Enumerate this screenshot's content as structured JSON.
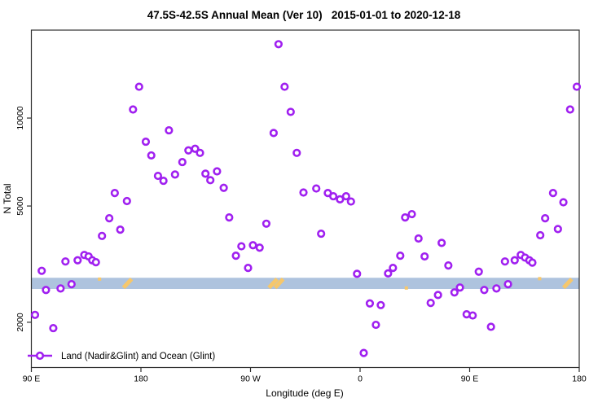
{
  "title": "47.5S-42.5S Annual Mean (Ver 10)   2015-01-01 to 2020-12-18",
  "legend": {
    "label": "Land (Nadir&Glint) and Ocean (Glint)"
  },
  "colors": {
    "points": "#A020F0",
    "band": "#AEC3DE",
    "band_marks": "#F6C76C",
    "axis": "#2e2e2e"
  },
  "x_axis": {
    "label": "Longitude (deg E)",
    "ticks": [
      {
        "lon": 90,
        "label": "90 E"
      },
      {
        "lon": 180,
        "label": "180"
      },
      {
        "lon": 270,
        "label": "90 W"
      },
      {
        "lon": 360,
        "label": "0"
      },
      {
        "lon": 450,
        "label": "90 E"
      },
      {
        "lon": 540,
        "label": "180"
      }
    ]
  },
  "y_axis": {
    "label": "N Total",
    "ticks": [
      {
        "n": 2000,
        "label": "2000"
      },
      {
        "n": 5000,
        "label": "5000"
      },
      {
        "n": 10000,
        "label": "10000"
      }
    ]
  },
  "chart_data": {
    "type": "scatter",
    "title": "47.5S-42.5S Annual Mean (Ver 10)   2015-01-01 to 2020-12-18",
    "xlabel": "Longitude (deg E)",
    "ylabel": "N Total",
    "xlim": [
      90,
      540
    ],
    "ylim": [
      1400,
      20000
    ],
    "y_scale": "log",
    "x_wrap_note": "x axis wraps eastward: 90E, 180, 90W, 0, 90E, 180",
    "grid": false,
    "legend_position": "bottom-left-inside",
    "band": {
      "n_from": 2600,
      "n_to": 2840
    },
    "band_marks": [
      {
        "lon": 146,
        "type": "dot",
        "n": 2810
      },
      {
        "lon": 169,
        "type": "slash"
      },
      {
        "lon": 288.5,
        "type": "slash"
      },
      {
        "lon": 293.5,
        "type": "slash"
      },
      {
        "lon": 398,
        "type": "dot",
        "n": 2620
      },
      {
        "lon": 507.5,
        "type": "dot",
        "n": 2820
      },
      {
        "lon": 530.5,
        "type": "slash"
      }
    ],
    "points": [
      [
        93,
        2120
      ],
      [
        98.5,
        3000
      ],
      [
        102,
        2580
      ],
      [
        108,
        1910
      ],
      [
        114,
        2610
      ],
      [
        118,
        3230
      ],
      [
        123,
        2700
      ],
      [
        128,
        3260
      ],
      [
        133.5,
        3400
      ],
      [
        137,
        3360
      ],
      [
        140,
        3260
      ],
      [
        143,
        3210
      ],
      [
        148,
        3950
      ],
      [
        154,
        4540
      ],
      [
        158.5,
        5540
      ],
      [
        163,
        4150
      ],
      [
        168.5,
        5200
      ],
      [
        173.5,
        10700
      ],
      [
        178.5,
        12800
      ],
      [
        184,
        8300
      ],
      [
        188.5,
        7450
      ],
      [
        194,
        6340
      ],
      [
        198.5,
        6100
      ],
      [
        203,
        9080
      ],
      [
        208,
        6410
      ],
      [
        214,
        7070
      ],
      [
        219,
        7750
      ],
      [
        224.5,
        7850
      ],
      [
        228.5,
        7600
      ],
      [
        233,
        6450
      ],
      [
        237,
        6130
      ],
      [
        242.5,
        6570
      ],
      [
        248,
        5770
      ],
      [
        252.5,
        4570
      ],
      [
        258,
        3380
      ],
      [
        262.5,
        3640
      ],
      [
        268,
        3070
      ],
      [
        272,
        3670
      ],
      [
        277.5,
        3600
      ],
      [
        283,
        4350
      ],
      [
        289,
        8890
      ],
      [
        293,
        17900
      ],
      [
        298,
        12800
      ],
      [
        303,
        10500
      ],
      [
        308,
        7600
      ],
      [
        313.5,
        5560
      ],
      [
        324,
        5740
      ],
      [
        328,
        4020
      ],
      [
        333.5,
        5540
      ],
      [
        338,
        5400
      ],
      [
        343.5,
        5270
      ],
      [
        348.5,
        5400
      ],
      [
        352.5,
        5180
      ],
      [
        357.5,
        2930
      ],
      [
        363,
        1570
      ],
      [
        368,
        2320
      ],
      [
        373,
        1960
      ],
      [
        377,
        2290
      ],
      [
        383,
        2940
      ],
      [
        387,
        3070
      ],
      [
        393,
        3380
      ],
      [
        397,
        4570
      ],
      [
        402.5,
        4690
      ],
      [
        408,
        3870
      ],
      [
        413,
        3360
      ],
      [
        418,
        2330
      ],
      [
        424,
        2480
      ],
      [
        427,
        3740
      ],
      [
        432.5,
        3130
      ],
      [
        437.5,
        2530
      ],
      [
        442,
        2630
      ],
      [
        447.5,
        2130
      ],
      [
        452.5,
        2110
      ],
      [
        457.5,
        2980
      ],
      [
        462,
        2580
      ],
      [
        467.5,
        1930
      ],
      [
        472,
        2610
      ],
      [
        479,
        3230
      ],
      [
        481.5,
        2700
      ],
      [
        487,
        3260
      ],
      [
        492,
        3400
      ],
      [
        495.5,
        3330
      ],
      [
        499,
        3260
      ],
      [
        501.5,
        3200
      ],
      [
        508,
        3970
      ],
      [
        512,
        4540
      ],
      [
        518.5,
        5540
      ],
      [
        522.5,
        4170
      ],
      [
        527,
        5150
      ],
      [
        532.5,
        10700
      ],
      [
        538,
        12800
      ]
    ]
  }
}
